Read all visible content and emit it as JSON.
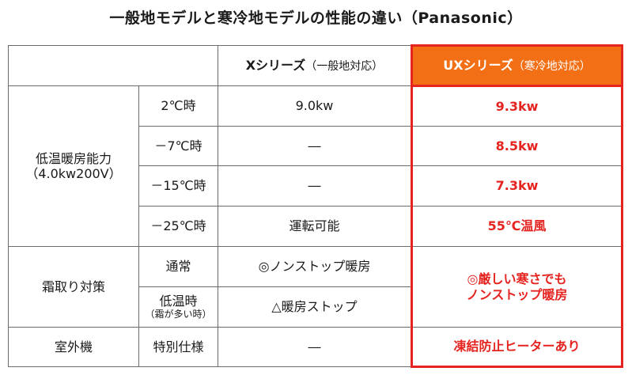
{
  "title": "一般地モデルと寒冷地モデルの性能の違い（Panasonic）",
  "header": {
    "x_series_name": "Xシリーズ",
    "x_series_sub": "（一般地対応）",
    "ux_series_name": "UXシリーズ",
    "ux_series_sub": "（寒冷地対応）"
  },
  "colors": {
    "ux_header_bg": "#f36f16",
    "ux_accent": "#e52420",
    "grid": "#6b6b6b"
  },
  "sections": {
    "heating": {
      "label_line1": "低温暖房能力",
      "label_line2": "（4.0kw200V）",
      "rows": [
        {
          "condition": "2℃時",
          "x": "9.0kw",
          "ux": "9.3kw"
        },
        {
          "condition": "－7℃時",
          "x": "―",
          "ux": "8.5kw"
        },
        {
          "condition": "－15℃時",
          "x": "―",
          "ux": "7.3kw"
        },
        {
          "condition": "－25℃時",
          "x": "運転可能",
          "ux": "55℃温風"
        }
      ]
    },
    "defrost": {
      "label": "霜取り対策",
      "rows": [
        {
          "condition": "通常",
          "x": "◎ノンストップ暖房"
        },
        {
          "condition": "低温時",
          "condition_note": "（霜が多い時）",
          "x": "△暖房ストップ"
        }
      ],
      "ux_line1": "◎厳しい寒さでも",
      "ux_line2": "ノンストップ暖房"
    },
    "outdoor": {
      "label": "室外機",
      "condition": "特別仕様",
      "x": "―",
      "ux": "凍結防止ヒーターあり"
    }
  }
}
